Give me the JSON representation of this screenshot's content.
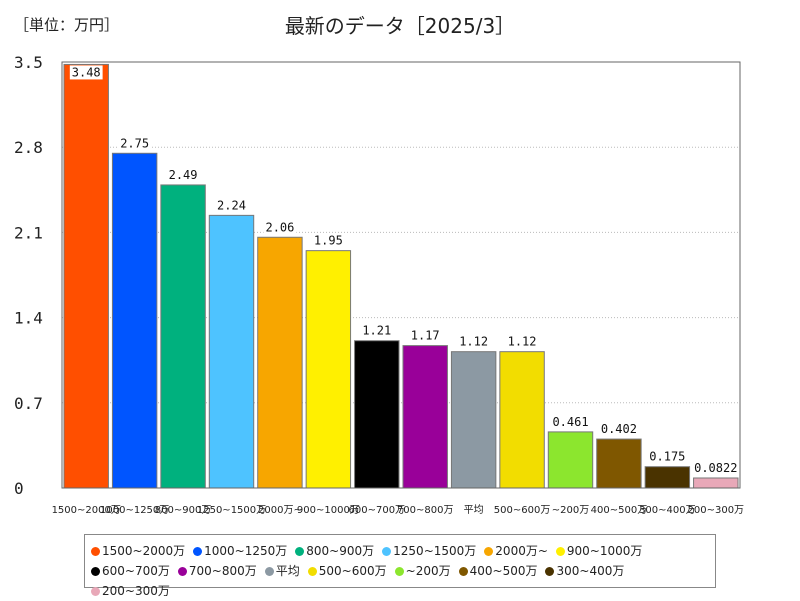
{
  "unit_label": "［単位：万円］",
  "chart_data": {
    "type": "bar",
    "title": "最新のデータ［2025/3］",
    "ylim": [
      0,
      3.5
    ],
    "yticks": [
      "0",
      "0.7",
      "1.4",
      "2.1",
      "2.8",
      "3.5"
    ],
    "yticks_values": [
      0,
      0.7,
      1.4,
      2.1,
      2.8,
      3.5
    ],
    "grid": true,
    "legend_position": "bottom",
    "bars": [
      {
        "category": "1500~2000万",
        "value": 3.48,
        "label": "3.48",
        "color": "#ff4f00"
      },
      {
        "category": "1000~1250万",
        "value": 2.75,
        "label": "2.75",
        "color": "#0055ff"
      },
      {
        "category": "800~900万",
        "value": 2.49,
        "label": "2.49",
        "color": "#00b17e"
      },
      {
        "category": "1250~1500万",
        "value": 2.24,
        "label": "2.24",
        "color": "#4ec3ff"
      },
      {
        "category": "2000万~",
        "value": 2.06,
        "label": "2.06",
        "color": "#f7a600"
      },
      {
        "category": "900~1000万",
        "value": 1.95,
        "label": "1.95",
        "color": "#fff000"
      },
      {
        "category": "600~700万",
        "value": 1.21,
        "label": "1.21",
        "color": "#000000"
      },
      {
        "category": "700~800万",
        "value": 1.17,
        "label": "1.17",
        "color": "#990099"
      },
      {
        "category": "平均",
        "value": 1.12,
        "label": "1.12",
        "color": "#8c99a3"
      },
      {
        "category": "500~600万",
        "value": 1.12,
        "label": "1.12",
        "color": "#f2dd00"
      },
      {
        "category": "~200万",
        "value": 0.461,
        "label": "0.461",
        "color": "#8ce62e"
      },
      {
        "category": "400~500万",
        "value": 0.402,
        "label": "0.402",
        "color": "#7f5700"
      },
      {
        "category": "300~400万",
        "value": 0.175,
        "label": "0.175",
        "color": "#4a3300"
      },
      {
        "category": "200~300万",
        "value": 0.0822,
        "label": "0.0822",
        "color": "#e8a8b8"
      }
    ],
    "legend": [
      {
        "label": "1500~2000万",
        "color": "#ff4f00"
      },
      {
        "label": "1000~1250万",
        "color": "#0055ff"
      },
      {
        "label": "800~900万",
        "color": "#00b17e"
      },
      {
        "label": "1250~1500万",
        "color": "#4ec3ff"
      },
      {
        "label": "2000万~",
        "color": "#f7a600"
      },
      {
        "label": "900~1000万",
        "color": "#fff000"
      },
      {
        "label": "600~700万",
        "color": "#000000"
      },
      {
        "label": "700~800万",
        "color": "#990099"
      },
      {
        "label": "平均",
        "color": "#8c99a3"
      },
      {
        "label": "500~600万",
        "color": "#f2dd00"
      },
      {
        "label": "~200万",
        "color": "#8ce62e"
      },
      {
        "label": "400~500万",
        "color": "#7f5700"
      },
      {
        "label": "300~400万",
        "color": "#4a3300"
      },
      {
        "label": "200~300万",
        "color": "#e8a8b8"
      }
    ]
  }
}
